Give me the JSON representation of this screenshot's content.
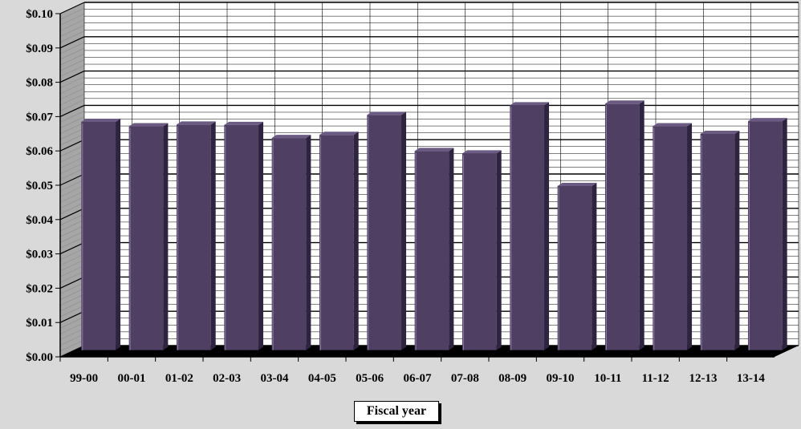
{
  "chart_data": {
    "type": "bar",
    "title": "",
    "xlabel": "Fiscal year",
    "ylabel": "",
    "ylim": [
      0,
      0.1
    ],
    "yticks": [
      "$0.00",
      "$0.01",
      "$0.02",
      "$0.03",
      "$0.04",
      "$0.05",
      "$0.06",
      "$0.07",
      "$0.08",
      "$0.09",
      "$0.10"
    ],
    "categories": [
      "99-00",
      "00-01",
      "01-02",
      "02-03",
      "03-04",
      "04-05",
      "05-06",
      "06-07",
      "07-08",
      "08-09",
      "09-10",
      "10-11",
      "11-12",
      "12-13",
      "13-14"
    ],
    "values": [
      0.0665,
      0.0652,
      0.0657,
      0.0656,
      0.0618,
      0.0627,
      0.0685,
      0.058,
      0.0573,
      0.0713,
      0.0478,
      0.0718,
      0.0652,
      0.063,
      0.0667
    ],
    "grid": true,
    "legend": "none",
    "colors": {
      "bar": "#4e3f63",
      "bar_top": "#6b5a82",
      "bar_side": "#2e2440",
      "background": "#d9d9d9",
      "plot": "#ffffff",
      "grid": "#000000"
    }
  }
}
